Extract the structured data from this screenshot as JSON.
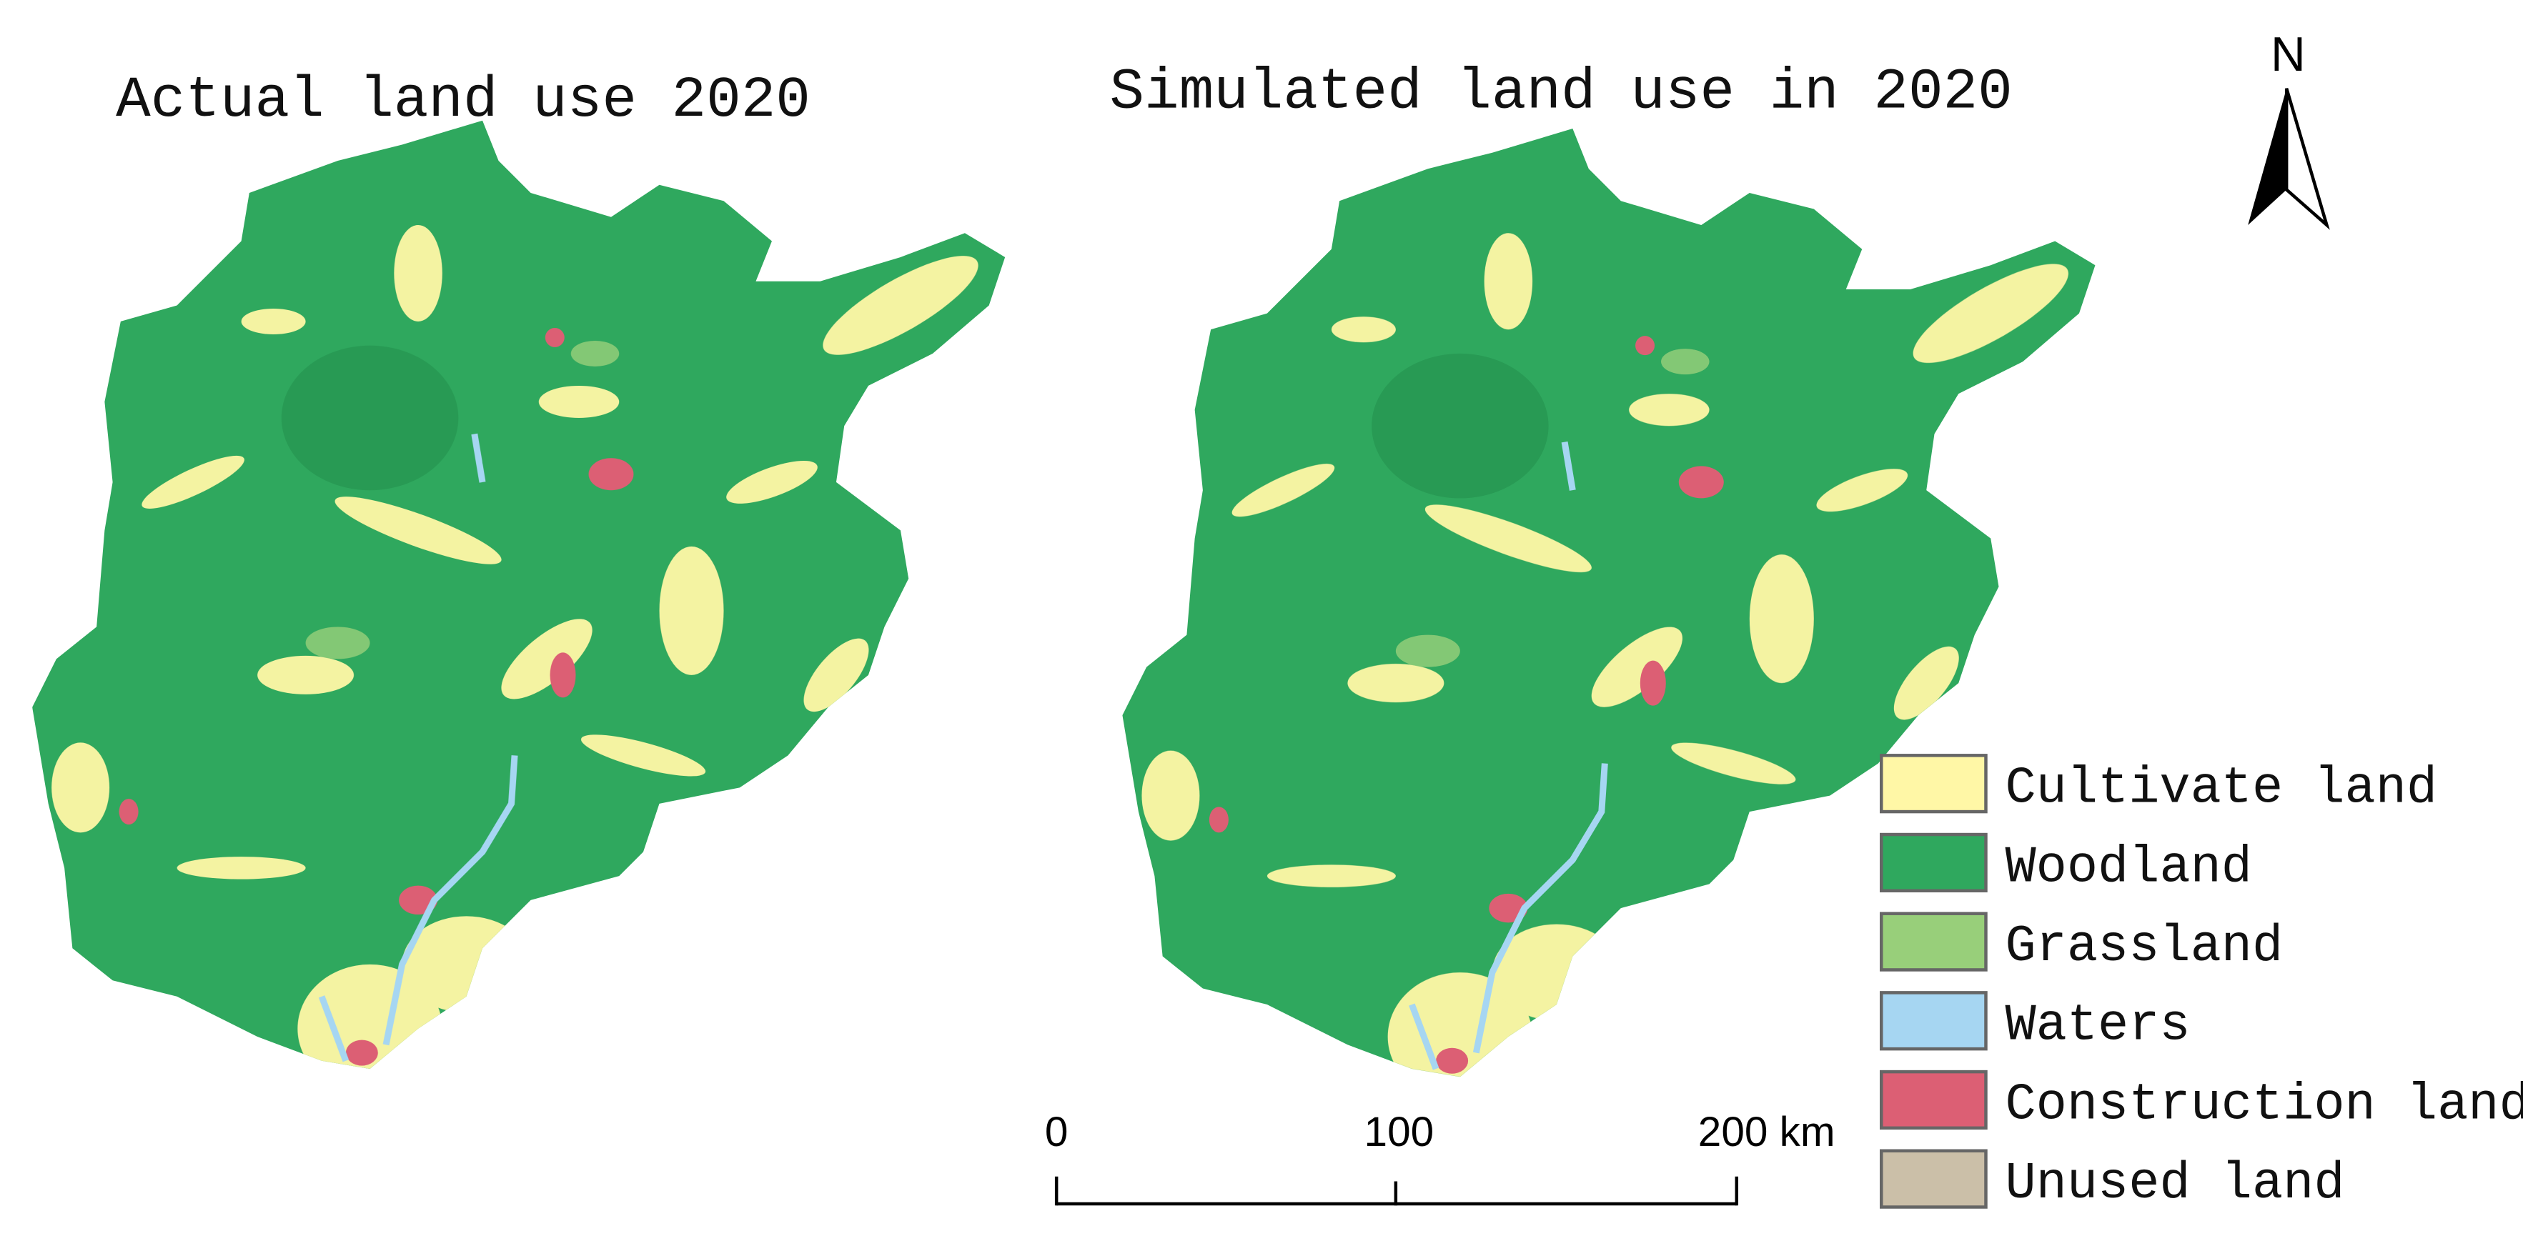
{
  "maps": [
    {
      "title": "Actual land use 2020"
    },
    {
      "title": "Simulated land use in 2020"
    }
  ],
  "north_arrow": {
    "label": "N"
  },
  "scale_bar": {
    "labels": [
      "0",
      "100",
      "200 km"
    ]
  },
  "legend": {
    "items": [
      {
        "name": "Cultivate land",
        "color": "#fff7a6"
      },
      {
        "name": "Woodland",
        "color": "#2fa85e"
      },
      {
        "name": "Grassland",
        "color": "#98cf7a"
      },
      {
        "name": "Waters",
        "color": "#a6d6f2"
      },
      {
        "name": "Construction land",
        "color": "#dc5f74"
      },
      {
        "name": "Unused land",
        "color": "#cbbfa8"
      }
    ]
  }
}
